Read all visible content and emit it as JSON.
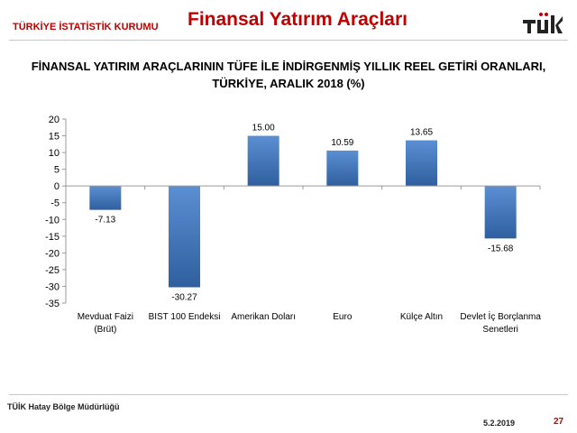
{
  "header": {
    "org_name": "TÜRKİYE İSTATİSTİK KURUMU",
    "slide_title": "Finansal Yatırım Araçları",
    "logo_text": "TÜİK"
  },
  "colors": {
    "accent": "#c00000",
    "bar_top": "#5b8fd3",
    "bar_bottom": "#2f5f9e"
  },
  "chart_data": {
    "type": "bar",
    "title_lines": [
      "FİNANSAL YATIRIM ARAÇLARININ TÜFE İLE İNDİRGENMİŞ YILLIK REEL GETİRİ ORANLARI,",
      "TÜRKİYE, ARALIK 2018 (%)"
    ],
    "categories": [
      [
        "Mevduat Faizi",
        "(Brüt)"
      ],
      [
        "BIST 100 Endeksi"
      ],
      [
        "Amerikan Doları"
      ],
      [
        "Euro"
      ],
      [
        "Külçe Altın"
      ],
      [
        "Devlet İç Borçlanma",
        "Senetleri"
      ]
    ],
    "values": [
      -7.13,
      -30.27,
      15.0,
      10.59,
      13.65,
      -15.68
    ],
    "value_labels": [
      "-7.13",
      "-30.27",
      "15.00",
      "10.59",
      "13.65",
      "-15.68"
    ],
    "ylim": [
      -35,
      20
    ],
    "yticks": [
      20,
      15,
      10,
      5,
      0,
      -5,
      -10,
      -15,
      -20,
      -25,
      -30,
      -35
    ],
    "grid": false,
    "legend": "none"
  },
  "footer": {
    "left": "TÜİK Hatay Bölge Müdürlüğü",
    "date": "5.2.2019",
    "page": "27"
  }
}
